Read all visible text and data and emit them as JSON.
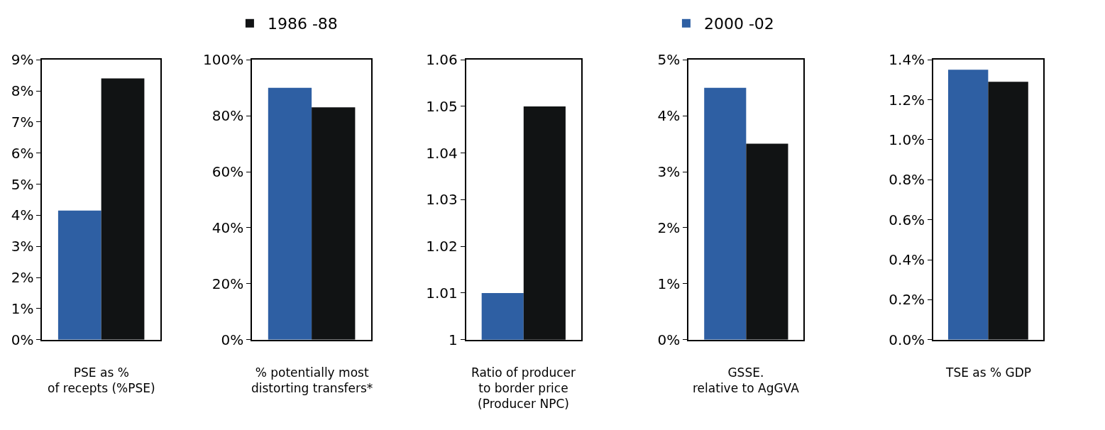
{
  "chart_data": [
    {
      "type": "bar",
      "categories": [
        null
      ],
      "xlabel": "PSE as %\nof recepts (%PSE)",
      "legend": "top",
      "tick_labels": "y",
      "series": [
        {
          "name": "2000 -02",
          "color": "#2e5fa3",
          "values": [
            4.15
          ]
        },
        {
          "name": "1986 -88",
          "color": "#111314",
          "values": [
            8.4
          ]
        }
      ],
      "ylim": [
        0,
        9
      ],
      "yticks": [
        {
          "value": 0,
          "label": "0%"
        },
        {
          "value": 1,
          "label": "1%"
        },
        {
          "value": 2,
          "label": "2%"
        },
        {
          "value": 3,
          "label": "3%"
        },
        {
          "value": 4,
          "label": "4%"
        },
        {
          "value": 5,
          "label": "5%"
        },
        {
          "value": 6,
          "label": "6%"
        },
        {
          "value": 7,
          "label": "7%"
        },
        {
          "value": 8,
          "label": "8%"
        },
        {
          "value": 9,
          "label": "9%"
        }
      ]
    },
    {
      "type": "bar",
      "categories": [
        null
      ],
      "xlabel": "% potentially most\ndistorting transfers*",
      "tick_labels": "y",
      "series": [
        {
          "color": "#2e5fa3",
          "values": [
            90
          ]
        },
        {
          "color": "#111314",
          "values": [
            83
          ]
        }
      ],
      "ylim": [
        0,
        100
      ],
      "yticks": [
        {
          "value": 0,
          "label": "0%"
        },
        {
          "value": 20,
          "label": "20%"
        },
        {
          "value": 40,
          "label": "40%"
        },
        {
          "value": 60,
          "label": "60%"
        },
        {
          "value": 80,
          "label": "80%"
        },
        {
          "value": 100,
          "label": "100%"
        }
      ]
    },
    {
      "type": "bar",
      "categories": [
        null
      ],
      "xlabel": "Ratio of producer\nto border price\n(Producer NPC)",
      "tick_labels": "y",
      "series": [
        {
          "color": "#2e5fa3",
          "values": [
            1.01
          ]
        },
        {
          "color": "#111314",
          "values": [
            1.05
          ]
        }
      ],
      "ylim": [
        1,
        1.06
      ],
      "yticks": [
        1,
        1.01,
        1.02,
        1.03,
        1.04,
        1.05,
        1.06
      ]
    },
    {
      "type": "bar",
      "categories": [
        null
      ],
      "xlabel": "GSSE.\nrelative to AgGVA",
      "tick_labels": "y",
      "series": [
        {
          "color": "#2e5fa3",
          "values": [
            4.5
          ]
        },
        {
          "color": "#111314",
          "values": [
            3.5
          ]
        }
      ],
      "ylim": [
        0,
        5
      ],
      "yticks": [
        {
          "value": 0,
          "label": "0%"
        },
        {
          "value": 1,
          "label": "1%"
        },
        {
          "value": 2,
          "label": "2%"
        },
        {
          "value": 3,
          "label": "3%"
        },
        {
          "value": 4,
          "label": "4%"
        },
        {
          "value": 5,
          "label": "5%"
        }
      ]
    },
    {
      "type": "bar",
      "categories": [
        null
      ],
      "xlabel": "TSE as % GDP",
      "tick_labels": "y",
      "series": [
        {
          "color": "#2e5fa3",
          "values": [
            1.35
          ]
        },
        {
          "color": "#111314",
          "values": [
            1.29
          ]
        }
      ],
      "ylim": [
        0,
        1.4
      ],
      "yticks": [
        {
          "value": 0,
          "label": "0.0%"
        },
        {
          "value": 0.2,
          "label": "0.2%"
        },
        {
          "value": 0.4,
          "label": "0.4%"
        },
        {
          "value": 0.6,
          "label": "0.6%"
        },
        {
          "value": 0.8,
          "label": "0.8%"
        },
        {
          "value": 1.0,
          "label": "1.0%"
        },
        {
          "value": 1.2,
          "label": "1.2%"
        },
        {
          "value": 1.4,
          "label": "1.4%"
        }
      ]
    }
  ]
}
